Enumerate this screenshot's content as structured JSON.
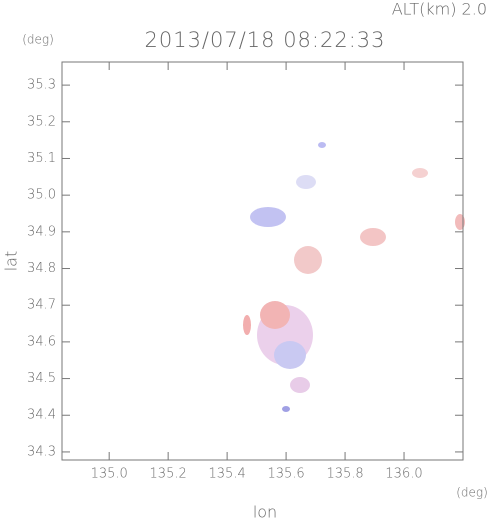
{
  "chart_data": {
    "type": "map",
    "title": "2013/07/18 08:22:33",
    "subtitle": "ALT(km)  2.0",
    "ylabel": "lat",
    "xlabel": "lon",
    "yunit": "(deg)",
    "xunit": "(deg)",
    "xlim": [
      134.84,
      136.2
    ],
    "ylim": [
      34.278,
      35.363
    ],
    "xticks": [
      {
        "value": 135.0,
        "label": "135.0"
      },
      135.2,
      135.4,
      135.6,
      135.8,
      {
        "value": 136.0,
        "label": "136.0"
      }
    ],
    "yticks": [
      34.3,
      34.4,
      34.5,
      34.6,
      34.7,
      34.8,
      34.9,
      {
        "value": 35.0,
        "label": "35.0"
      },
      35.1,
      35.2,
      35.3
    ],
    "axis_color": "#777777"
  }
}
